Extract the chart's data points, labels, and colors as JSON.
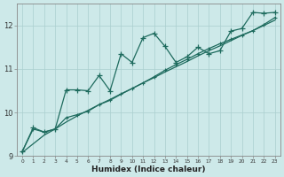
{
  "bg_color": "#cde9e9",
  "line_color": "#1e6b5e",
  "grid_color": "#aacfcf",
  "xlabel": "Humidex (Indice chaleur)",
  "x": [
    0,
    1,
    2,
    3,
    4,
    5,
    6,
    7,
    8,
    9,
    10,
    11,
    12,
    13,
    14,
    15,
    16,
    17,
    18,
    19,
    20,
    21,
    22,
    23
  ],
  "jagged_y": [
    9.1,
    9.65,
    9.55,
    9.62,
    10.52,
    10.52,
    10.5,
    10.85,
    10.5,
    11.35,
    11.15,
    11.72,
    11.82,
    11.52,
    11.15,
    11.28,
    11.5,
    11.35,
    11.42,
    11.87,
    11.93,
    12.3,
    12.28,
    12.3
  ],
  "steady_y": [
    9.1,
    9.62,
    9.55,
    9.62,
    9.88,
    9.95,
    10.03,
    10.18,
    10.28,
    10.42,
    10.55,
    10.68,
    10.82,
    10.97,
    11.1,
    11.22,
    11.35,
    11.47,
    11.58,
    11.68,
    11.78,
    11.88,
    12.02,
    12.18
  ],
  "straight_y": [
    9.08,
    9.28,
    9.48,
    9.62,
    9.78,
    9.92,
    10.05,
    10.18,
    10.3,
    10.43,
    10.55,
    10.68,
    10.8,
    10.93,
    11.05,
    11.17,
    11.3,
    11.42,
    11.53,
    11.65,
    11.77,
    11.88,
    12.0,
    12.12
  ],
  "xlim": [
    -0.5,
    23.5
  ],
  "ylim": [
    9.0,
    12.5
  ],
  "yticks": [
    9,
    10,
    11,
    12
  ],
  "xticks": [
    0,
    1,
    2,
    3,
    4,
    5,
    6,
    7,
    8,
    9,
    10,
    11,
    12,
    13,
    14,
    15,
    16,
    17,
    18,
    19,
    20,
    21,
    22,
    23
  ]
}
